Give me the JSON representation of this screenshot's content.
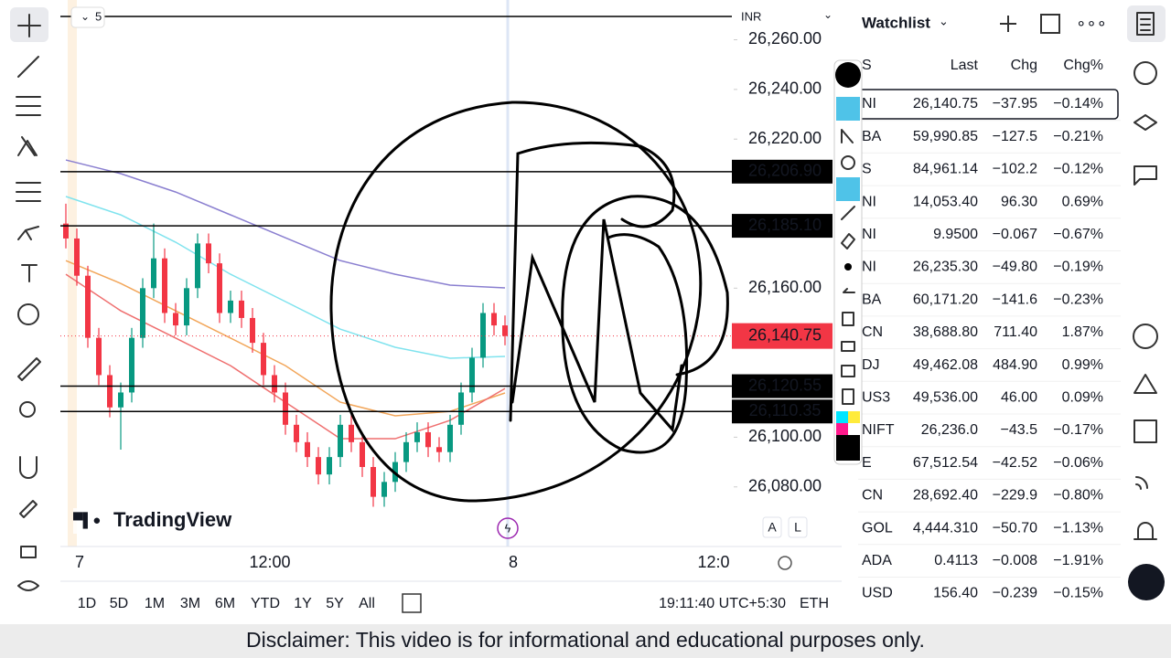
{
  "top_bar": {
    "badge": "5",
    "currency": "INR"
  },
  "logo": "TradingView",
  "chart_data": {
    "type": "candlestick",
    "ylim": [
      26056,
      26276
    ],
    "yticks": [
      {
        "value": 26080,
        "label": "26,080.00"
      },
      {
        "value": 26100,
        "label": "26,100.00"
      },
      {
        "value": 26160,
        "label": "26,160.00"
      },
      {
        "value": 26220,
        "label": "26,220.00"
      },
      {
        "value": 26240,
        "label": "26,240.00"
      },
      {
        "value": 26260,
        "label": "26,260.00"
      }
    ],
    "x_labels": [
      "7",
      "12:00",
      "8",
      "12:0"
    ],
    "up_color": "#089981",
    "down_color": "#f23645",
    "candles": [
      [
        26186,
        26194,
        26176,
        26180
      ],
      [
        26180,
        26184,
        26161,
        26165
      ],
      [
        26165,
        26169,
        26136,
        26140
      ],
      [
        26140,
        26144,
        26121,
        26125
      ],
      [
        26125,
        26129,
        26108,
        26112
      ],
      [
        26112,
        26122,
        26095,
        26118
      ],
      [
        26118,
        26144,
        26114,
        26140
      ],
      [
        26140,
        26164,
        26136,
        26160
      ],
      [
        26160,
        26186,
        26156,
        26172
      ],
      [
        26172,
        26176,
        26146,
        26150
      ],
      [
        26150,
        26154,
        26141,
        26145
      ],
      [
        26145,
        26164,
        26141,
        26160
      ],
      [
        26160,
        26182,
        26156,
        26178
      ],
      [
        26178,
        26182,
        26166,
        26170
      ],
      [
        26170,
        26174,
        26146,
        26150
      ],
      [
        26150,
        26159,
        26146,
        26155
      ],
      [
        26155,
        26159,
        26144,
        26148
      ],
      [
        26148,
        26152,
        26134,
        26138
      ],
      [
        26138,
        26142,
        26121,
        26125
      ],
      [
        26125,
        26129,
        26114,
        26118
      ],
      [
        26118,
        26122,
        26101,
        26105
      ],
      [
        26105,
        26109,
        26094,
        26098
      ],
      [
        26098,
        26102,
        26088,
        26092
      ],
      [
        26092,
        26096,
        26081,
        26085
      ],
      [
        26085,
        26096,
        26081,
        26092
      ],
      [
        26092,
        26109,
        26088,
        26105
      ],
      [
        26105,
        26109,
        26094,
        26098
      ],
      [
        26098,
        26102,
        26084,
        26088
      ],
      [
        26088,
        26092,
        26072,
        26076
      ],
      [
        26076,
        26086,
        26072,
        26082
      ],
      [
        26082,
        26094,
        26078,
        26090
      ],
      [
        26090,
        26102,
        26086,
        26098
      ],
      [
        26098,
        26106,
        26094,
        26102
      ],
      [
        26102,
        26106,
        26092,
        26096
      ],
      [
        26096,
        26100,
        26090,
        26094
      ],
      [
        26094,
        26109,
        26090,
        26105
      ],
      [
        26105,
        26122,
        26101,
        26118
      ],
      [
        26118,
        26136,
        26114,
        26132
      ],
      [
        26132,
        26154,
        26128,
        26150
      ],
      [
        26150,
        26154,
        26141,
        26145
      ],
      [
        26145,
        26149,
        26137,
        26140.75
      ]
    ],
    "ma_x": [
      0,
      5,
      10,
      15,
      20,
      25,
      30,
      35,
      40
    ],
    "series": [
      {
        "color": "#8a7fd0",
        "values": [
          26211.6,
          26206.1,
          26198.7,
          26189.5,
          26180.3,
          26171.1,
          26165.6,
          26161.2,
          26160.1
        ]
      },
      {
        "color": "#7fe3ee",
        "values": [
          26196.9,
          26189.5,
          26178.5,
          26165.6,
          26154.6,
          26143.5,
          26136.2,
          26131.8,
          26132.5
        ]
      },
      {
        "color": "#f2a65a",
        "values": [
          26171.1,
          26161.9,
          26150.9,
          26139.9,
          26128.8,
          26114.1,
          26108.6,
          26110.4,
          26117.8
        ]
      },
      {
        "color": "#ef6f6f",
        "values": [
          26165.6,
          26150.9,
          26139.9,
          26128.8,
          26114.1,
          26099.4,
          26099.4,
          26106.8,
          26119.6
        ]
      }
    ],
    "levels": [
      {
        "value": 26206.9,
        "label": "26,206.90"
      },
      {
        "value": 26185.1,
        "label": "26,185.10"
      },
      {
        "value": 26120.55,
        "label": "26,120.55"
      },
      {
        "value": 26110.35,
        "label": "26,110.35"
      }
    ],
    "last_price": {
      "value": 26140.75,
      "label": "26,140.75",
      "color": "#f23645"
    }
  },
  "scale_buttons": [
    "A",
    "L"
  ],
  "ranges": [
    "1D",
    "5D",
    "1M",
    "3M",
    "6M",
    "YTD",
    "1Y",
    "5Y",
    "All"
  ],
  "clock": "19:11:40 UTC+5:30",
  "session": "ETH",
  "watchlist": {
    "title": "Watchlist",
    "columns": [
      "S",
      "Last",
      "Chg",
      "Chg%"
    ],
    "rows": [
      [
        "NI",
        "26,140.75",
        "−37.95",
        "−0.14%"
      ],
      [
        "BA",
        "59,990.85",
        "−127.5",
        "−0.21%"
      ],
      [
        "S",
        "84,961.14",
        "−102.2",
        "−0.12%"
      ],
      [
        "NI",
        "14,053.40",
        "96.30",
        "0.69%"
      ],
      [
        "NI",
        "9.9500",
        "−0.067",
        "−0.67%"
      ],
      [
        "NI",
        "26,235.30",
        "−49.80",
        "−0.19%"
      ],
      [
        "BA",
        "60,171.20",
        "−141.6",
        "−0.23%"
      ],
      [
        "CN",
        "38,688.80",
        "711.40",
        "1.87%"
      ],
      [
        "DJ",
        "49,462.08",
        "484.90",
        "0.99%"
      ],
      [
        "US3",
        "49,536.00",
        "46.00",
        "0.09%"
      ],
      [
        "NIFT",
        "26,236.0",
        "−43.5",
        "−0.17%"
      ],
      [
        "E",
        "67,512.54",
        "−42.52",
        "−0.06%"
      ],
      [
        "CN",
        "28,692.40",
        "−229.9",
        "−0.80%"
      ],
      [
        "GOL",
        "4,444.310",
        "−50.70",
        "−1.13%"
      ],
      [
        "ADA",
        "0.4113",
        "−0.008",
        "−1.91%"
      ],
      [
        "USD",
        "156.40",
        "−0.239",
        "−0.15%"
      ]
    ]
  },
  "disclaimer": "Disclaimer: This video is for informational and educational purposes only."
}
